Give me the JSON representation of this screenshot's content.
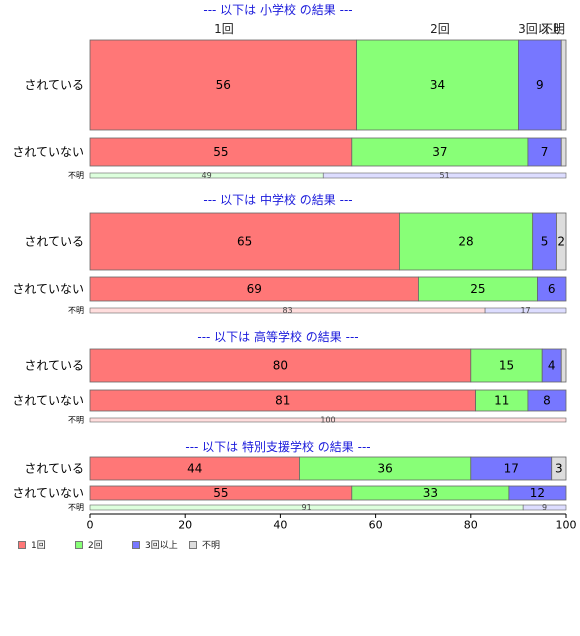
{
  "chart_data": {
    "type": "bar",
    "orientation": "horizontal-stacked-percent",
    "xlim": [
      0,
      100
    ],
    "xticks": [
      "0",
      "20",
      "40",
      "60",
      "80",
      "100"
    ],
    "top_labels": [
      "1回",
      "2回",
      "3回以上",
      "不明"
    ],
    "legend": {
      "placement": "bottom-left",
      "entries": [
        "1回",
        "2回",
        "3回以上",
        "不明"
      ],
      "colors": [
        "#ff7777",
        "#88ff77",
        "#7777ff",
        "#dddddd"
      ]
    },
    "colors": {
      "fill": [
        "#ff7777",
        "#88ff77",
        "#7777ff",
        "#dddddd"
      ],
      "light_fill": [
        "#ffdddd",
        "#ddffdd",
        "#ddddff"
      ],
      "title": "#1a1adb",
      "border": "#666666"
    },
    "panels": [
      {
        "title": "--- 以下は 小学校 の結果 ---",
        "rows": [
          {
            "label": "されている",
            "values": [
              56,
              34,
              9,
              1
            ],
            "labels": [
              "56",
              "34",
              "9",
              ""
            ]
          },
          {
            "label": "されていない",
            "values": [
              55,
              37,
              7,
              1
            ],
            "labels": [
              "55",
              "37",
              "7",
              ""
            ]
          }
        ],
        "unknown": {
          "label": "不明",
          "values": [
            0,
            49,
            51,
            0
          ],
          "labels": [
            "",
            "49",
            "51",
            ""
          ]
        }
      },
      {
        "title": "--- 以下は 中学校 の結果 ---",
        "rows": [
          {
            "label": "されている",
            "values": [
              65,
              28,
              5,
              2
            ],
            "labels": [
              "65",
              "28",
              "5",
              "2"
            ]
          },
          {
            "label": "されていない",
            "values": [
              69,
              25,
              6,
              0
            ],
            "labels": [
              "69",
              "25",
              "6",
              ""
            ]
          }
        ],
        "unknown": {
          "label": "不明",
          "values": [
            83,
            0,
            17,
            0
          ],
          "labels": [
            "83",
            "",
            "17",
            ""
          ]
        }
      },
      {
        "title": "--- 以下は 高等学校 の結果 ---",
        "rows": [
          {
            "label": "されている",
            "values": [
              80,
              15,
              4,
              1
            ],
            "labels": [
              "80",
              "15",
              "4",
              ""
            ]
          },
          {
            "label": "されていない",
            "values": [
              81,
              11,
              8,
              0
            ],
            "labels": [
              "81",
              "11",
              "8",
              ""
            ]
          }
        ],
        "unknown": {
          "label": "不明",
          "values": [
            100,
            0,
            0,
            0
          ],
          "labels": [
            "100",
            "",
            "",
            ""
          ]
        }
      },
      {
        "title": "--- 以下は 特別支援学校 の結果 ---",
        "rows": [
          {
            "label": "されている",
            "values": [
              44,
              36,
              17,
              3
            ],
            "labels": [
              "44",
              "36",
              "17",
              "3"
            ]
          },
          {
            "label": "されていない",
            "values": [
              55,
              33,
              12,
              0
            ],
            "labels": [
              "55",
              "33",
              "12",
              ""
            ]
          }
        ],
        "unknown": {
          "label": "不明",
          "values": [
            0,
            91,
            9,
            0
          ],
          "labels": [
            "",
            "91",
            "9",
            ""
          ]
        }
      }
    ]
  }
}
